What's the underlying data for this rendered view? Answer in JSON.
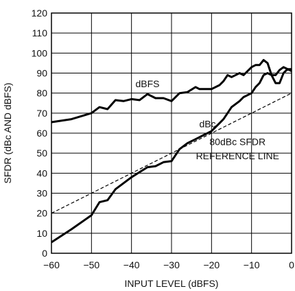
{
  "chart_data": {
    "type": "line",
    "xlabel": "INPUT LEVEL (dBFS)",
    "ylabel": "SFDR (dBc AND dBFS)",
    "xlim": [
      -60,
      0
    ],
    "ylim": [
      0,
      120
    ],
    "xticks": [
      -60,
      -50,
      -40,
      -30,
      -20,
      -10,
      0
    ],
    "yticks": [
      0,
      10,
      20,
      30,
      40,
      50,
      60,
      70,
      80,
      90,
      100,
      110,
      120
    ],
    "grid": true,
    "series": [
      {
        "name": "dBFS",
        "style": "solid-bold",
        "x": [
          -60,
          -55,
          -50,
          -48,
          -46,
          -44,
          -42,
          -40,
          -38,
          -36,
          -34,
          -32,
          -30,
          -28,
          -26,
          -24,
          -23,
          -20,
          -18,
          -17,
          -16,
          -15,
          -13,
          -12,
          -10,
          -9,
          -8,
          -7,
          -6,
          -5,
          -4,
          -3,
          -2,
          -1,
          0
        ],
        "y": [
          65.5,
          67,
          70,
          73,
          72,
          76.5,
          76,
          77,
          76.5,
          79.5,
          77.5,
          77.5,
          76,
          80,
          80.5,
          83,
          82,
          82,
          84,
          86,
          89,
          88,
          90,
          89,
          93,
          94,
          94,
          96.5,
          95,
          89,
          89,
          91.5,
          93,
          92,
          92
        ]
      },
      {
        "name": "dBc",
        "style": "solid-bold",
        "x": [
          -60,
          -55,
          -50,
          -48,
          -46,
          -44,
          -42,
          -40,
          -38,
          -36,
          -34,
          -32,
          -30,
          -28,
          -26,
          -24,
          -22,
          -20,
          -18,
          -17,
          -16,
          -15,
          -13,
          -12,
          -10,
          -9,
          -8,
          -7,
          -6,
          -5,
          -4,
          -3,
          -2,
          -1,
          0
        ],
        "y": [
          5.5,
          12,
          19,
          25.5,
          26.5,
          32,
          35,
          38,
          40.5,
          43,
          43.5,
          45.5,
          46,
          52,
          55,
          57,
          59,
          61,
          65,
          67,
          70,
          73,
          76,
          78,
          80,
          83,
          85,
          89,
          90,
          89,
          85,
          85,
          90,
          92,
          91
        ]
      },
      {
        "name": "80dBc SFDR REFERENCE LINE",
        "style": "dashed",
        "x": [
          -60,
          0
        ],
        "y": [
          20,
          80
        ]
      }
    ],
    "annotations": [
      {
        "text": "dBFS",
        "x": -36,
        "y": 83
      },
      {
        "text": "dBc",
        "x": -21,
        "y": 63
      },
      {
        "text": "80dBc SFDR",
        "x": -13.5,
        "y": 54
      },
      {
        "text": "REFERENCE LINE",
        "x": -13.5,
        "y": 47
      }
    ]
  }
}
